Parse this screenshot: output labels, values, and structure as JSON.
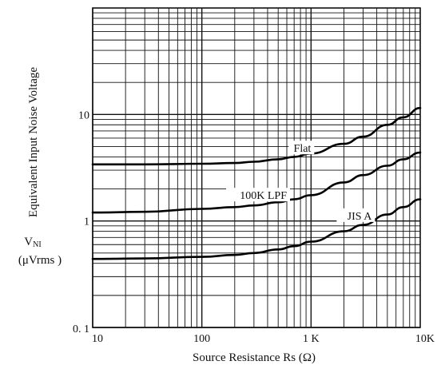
{
  "chart_data": {
    "type": "line",
    "xlabel": "Source Resistance Rs (Ω)",
    "ylabel": "Equivalent Input Noise Voltage",
    "ylabel_symbol_main": "V",
    "ylabel_symbol_sub": "NI",
    "ylabel_unit": "(μVrms )",
    "x_scale": "log",
    "y_scale": "log",
    "xlim": [
      10,
      10000
    ],
    "ylim": [
      0.1,
      100
    ],
    "grid": true,
    "x_ticks": [
      {
        "value": 10,
        "label": "10"
      },
      {
        "value": 100,
        "label": "100"
      },
      {
        "value": 1000,
        "label": "1 K"
      },
      {
        "value": 10000,
        "label": "10K"
      }
    ],
    "y_ticks": [
      {
        "value": 0.1,
        "label": "0. 1"
      },
      {
        "value": 1,
        "label": "1"
      },
      {
        "value": 10,
        "label": "10"
      }
    ],
    "series": [
      {
        "name": "Flat",
        "x": [
          10,
          30,
          100,
          200,
          300,
          500,
          700,
          1000,
          2000,
          3000,
          5000,
          7000,
          10000
        ],
        "y": [
          3.4,
          3.4,
          3.45,
          3.5,
          3.6,
          3.8,
          4.0,
          4.3,
          5.3,
          6.2,
          8.0,
          9.4,
          11.5
        ]
      },
      {
        "name": "100K LPF",
        "x": [
          10,
          30,
          100,
          200,
          300,
          500,
          700,
          1000,
          2000,
          3000,
          5000,
          7000,
          10000
        ],
        "y": [
          1.2,
          1.22,
          1.3,
          1.35,
          1.4,
          1.5,
          1.6,
          1.75,
          2.3,
          2.7,
          3.3,
          3.8,
          4.4
        ]
      },
      {
        "name": "JIS A",
        "x": [
          10,
          30,
          100,
          200,
          300,
          500,
          700,
          1000,
          2000,
          3000,
          5000,
          7000,
          10000
        ],
        "y": [
          0.44,
          0.445,
          0.46,
          0.48,
          0.5,
          0.54,
          0.58,
          0.64,
          0.8,
          0.92,
          1.15,
          1.35,
          1.6
        ]
      }
    ]
  }
}
